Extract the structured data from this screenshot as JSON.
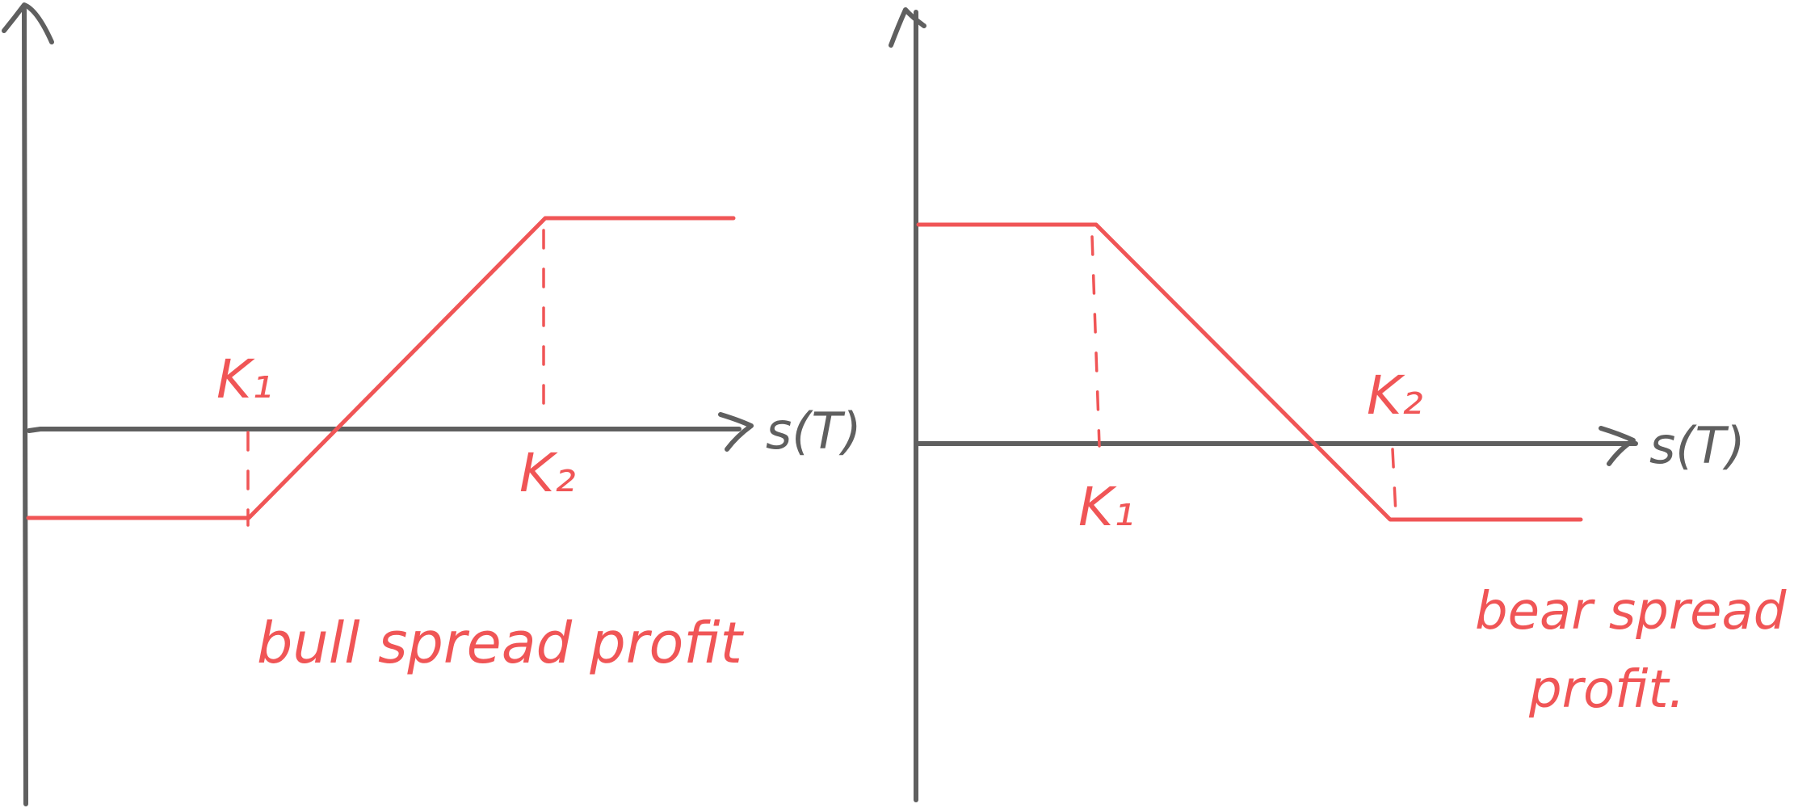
{
  "colors": {
    "axis": "#5f5f5f",
    "payoff": "#f05556"
  },
  "left_diagram": {
    "k1_label": "K₁",
    "k2_label": "K₂",
    "x_axis_label": "s(T)",
    "caption": "bull spread profit"
  },
  "right_diagram": {
    "k1_label": "K₁",
    "k2_label": "K₂",
    "x_axis_label": "s(T)",
    "caption_line1": "bear spread",
    "caption_line2": "profit."
  }
}
